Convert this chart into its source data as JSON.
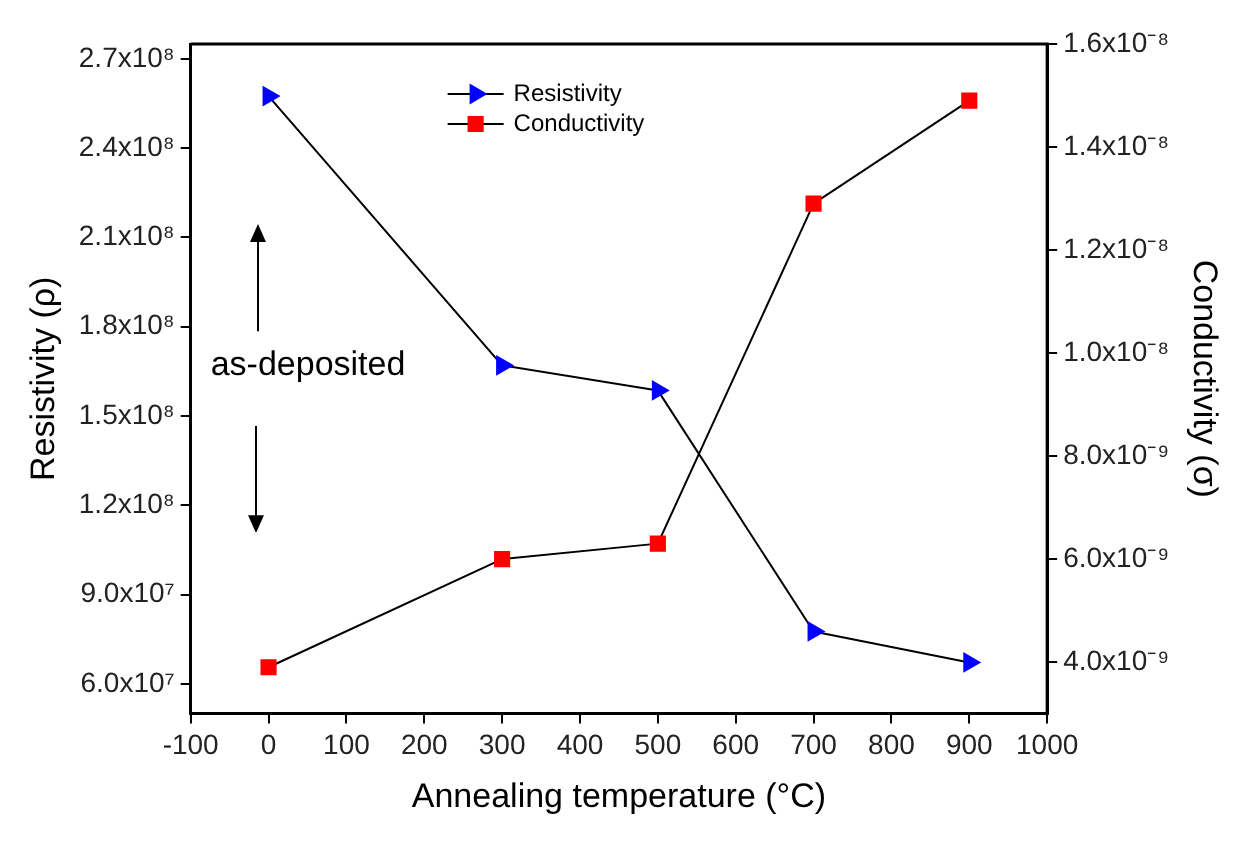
{
  "chart_data": {
    "type": "line",
    "xlabel": "Annealing temperature (°C)",
    "ylabel": "Resistivity (ρ)",
    "y2label": "Conductivity (σ)",
    "x": [
      0,
      300,
      500,
      700,
      900
    ],
    "series": [
      {
        "name": "Resistivity",
        "color": "#0000ff",
        "marker": "triangle",
        "values": [
          257500000.0,
          167000000.0,
          158600000.0,
          77600000.0,
          67200000.0
        ]
      },
      {
        "name": "Conductivity",
        "color": "#ff0000",
        "marker": "square",
        "axis": "y2",
        "values": [
          3.9e-09,
          6e-09,
          6.3e-09,
          1.29e-08,
          1.49e-08
        ]
      }
    ],
    "xlim": [
      -100,
      1000
    ],
    "xticks": [
      -100,
      0,
      100,
      200,
      300,
      400,
      500,
      600,
      700,
      800,
      900,
      1000
    ],
    "ylim": [
      50000000.0,
      275000000.0
    ],
    "yticks": [
      {
        "value": 60000000.0,
        "label": "6.0x10⁷"
      },
      {
        "value": 90000000.0,
        "label": "9.0x10⁷"
      },
      {
        "value": 120000000.0,
        "label": "1.2x10⁸"
      },
      {
        "value": 150000000.0,
        "label": "1.5x10⁸"
      },
      {
        "value": 180000000.0,
        "label": "1.8x10⁸"
      },
      {
        "value": 210000000.0,
        "label": "2.1x10⁸"
      },
      {
        "value": 240000000.0,
        "label": "2.4x10⁸"
      },
      {
        "value": 270000000.0,
        "label": "2.7x10⁸"
      }
    ],
    "y2lim": [
      3e-09,
      1.6e-08
    ],
    "y2ticks": [
      {
        "value": 4e-09,
        "label": "4.0x10⁻⁹"
      },
      {
        "value": 6e-09,
        "label": "6.0x10⁻⁹"
      },
      {
        "value": 8e-09,
        "label": "8.0x10⁻⁹"
      },
      {
        "value": 1e-08,
        "label": "1.0x10⁻⁸"
      },
      {
        "value": 1.2e-08,
        "label": "1.2x10⁻⁸"
      },
      {
        "value": 1.4e-08,
        "label": "1.4x10⁻⁸"
      },
      {
        "value": 1.6e-08,
        "label": "1.6x10⁻⁸"
      }
    ],
    "annotations": [
      "as-deposited"
    ],
    "legend": "top",
    "grid": false,
    "line_style": "solid"
  }
}
